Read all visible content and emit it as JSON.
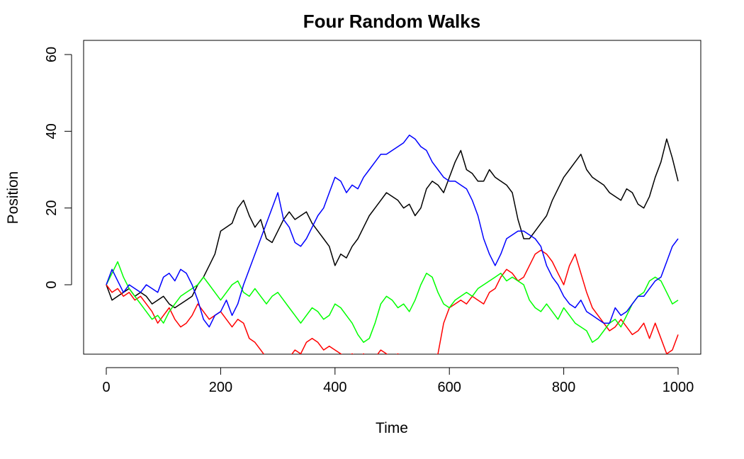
{
  "chart_data": {
    "type": "line",
    "title": "Four Random Walks",
    "xlabel": "Time",
    "ylabel": "Position",
    "xlim": [
      0,
      1000
    ],
    "ylim": [
      -18,
      62
    ],
    "xticks": [
      0,
      200,
      400,
      600,
      800,
      1000
    ],
    "yticks": [
      0,
      20,
      40,
      60
    ],
    "grid": false,
    "legend": "none",
    "series": [
      {
        "color": "#000000",
        "x": [
          0,
          10,
          20,
          30,
          40,
          50,
          60,
          70,
          80,
          90,
          100,
          110,
          120,
          130,
          140,
          150,
          160,
          170,
          180,
          190,
          200,
          210,
          220,
          230,
          240,
          250,
          260,
          270,
          280,
          290,
          300,
          310,
          320,
          330,
          340,
          350,
          360,
          370,
          380,
          390,
          400,
          410,
          420,
          430,
          440,
          450,
          460,
          470,
          480,
          490,
          500,
          510,
          520,
          530,
          540,
          550,
          560,
          570,
          580,
          590,
          600,
          610,
          620,
          630,
          640,
          650,
          660,
          670,
          680,
          690,
          700,
          710,
          720,
          730,
          740,
          750,
          760,
          770,
          780,
          790,
          800,
          810,
          820,
          830,
          840,
          850,
          860,
          870,
          880,
          890,
          900,
          910,
          920,
          930,
          940,
          950,
          960,
          970,
          980,
          990,
          1000
        ],
        "y": [
          0,
          -4,
          -3,
          -2,
          -1,
          -3,
          -2,
          -3,
          -5,
          -4,
          -3,
          -5,
          -6,
          -5,
          -4,
          -3,
          0,
          2,
          5,
          8,
          14,
          15,
          16,
          20,
          22,
          18,
          15,
          17,
          12,
          11,
          14,
          17,
          19,
          17,
          18,
          19,
          16,
          14,
          12,
          10,
          5,
          8,
          7,
          10,
          12,
          15,
          18,
          20,
          22,
          24,
          23,
          22,
          20,
          21,
          18,
          20,
          25,
          27,
          26,
          24,
          28,
          32,
          35,
          30,
          29,
          27,
          27,
          30,
          28,
          27,
          26,
          24,
          17,
          12,
          12,
          14,
          16,
          18,
          22,
          25,
          28,
          30,
          32,
          34,
          30,
          28,
          27,
          26,
          24,
          23,
          22,
          25,
          24,
          21,
          20,
          23,
          28,
          32,
          38,
          33,
          27
        ]
      },
      {
        "color": "#ff0000",
        "x": [
          0,
          10,
          20,
          30,
          40,
          50,
          60,
          70,
          80,
          90,
          100,
          110,
          120,
          130,
          140,
          150,
          160,
          170,
          180,
          190,
          200,
          210,
          220,
          230,
          240,
          250,
          260,
          270,
          280,
          290,
          300,
          310,
          320,
          330,
          340,
          350,
          360,
          370,
          380,
          390,
          400,
          410,
          420,
          430,
          440,
          450,
          460,
          470,
          480,
          490,
          500,
          510,
          520,
          530,
          540,
          550,
          560,
          570,
          580,
          590,
          600,
          610,
          620,
          630,
          640,
          650,
          660,
          670,
          680,
          690,
          700,
          710,
          720,
          730,
          740,
          750,
          760,
          770,
          780,
          790,
          800,
          810,
          820,
          830,
          840,
          850,
          860,
          870,
          880,
          890,
          900,
          910,
          920,
          930,
          940,
          950,
          960,
          970,
          980,
          990,
          1000
        ],
        "y": [
          0,
          -2,
          -1,
          -3,
          -2,
          -4,
          -3,
          -5,
          -7,
          -10,
          -8,
          -6,
          -9,
          -11,
          -10,
          -8,
          -5,
          -7,
          -9,
          -8,
          -7,
          -9,
          -11,
          -9,
          -10,
          -14,
          -15,
          -17,
          -19,
          -21,
          -20,
          -21,
          -19,
          -17,
          -18,
          -15,
          -14,
          -15,
          -17,
          -16,
          -17,
          -18,
          -19,
          -18,
          -19,
          -18,
          -20,
          -19,
          -17,
          -18,
          -19,
          -18,
          -20,
          -21,
          -22,
          -21,
          -20,
          -19,
          -18,
          -10,
          -6,
          -5,
          -4,
          -5,
          -3,
          -4,
          -5,
          -2,
          -1,
          2,
          4,
          3,
          1,
          2,
          5,
          8,
          9,
          8,
          6,
          3,
          0,
          5,
          8,
          3,
          -2,
          -6,
          -8,
          -10,
          -12,
          -11,
          -9,
          -11,
          -13,
          -12,
          -10,
          -14,
          -10,
          -14,
          -18,
          -17,
          -13
        ]
      },
      {
        "color": "#00ff00",
        "x": [
          0,
          10,
          20,
          30,
          40,
          50,
          60,
          70,
          80,
          90,
          100,
          110,
          120,
          130,
          140,
          150,
          160,
          170,
          180,
          190,
          200,
          210,
          220,
          230,
          240,
          250,
          260,
          270,
          280,
          290,
          300,
          310,
          320,
          330,
          340,
          350,
          360,
          370,
          380,
          390,
          400,
          410,
          420,
          430,
          440,
          450,
          460,
          470,
          480,
          490,
          500,
          510,
          520,
          530,
          540,
          550,
          560,
          570,
          580,
          590,
          600,
          610,
          620,
          630,
          640,
          650,
          660,
          670,
          680,
          690,
          700,
          710,
          720,
          730,
          740,
          750,
          760,
          770,
          780,
          790,
          800,
          810,
          820,
          830,
          840,
          850,
          860,
          870,
          880,
          890,
          900,
          910,
          920,
          930,
          940,
          950,
          960,
          970,
          980,
          990,
          1000
        ],
        "y": [
          0,
          3,
          6,
          2,
          -1,
          -3,
          -5,
          -7,
          -9,
          -8,
          -10,
          -7,
          -5,
          -3,
          -2,
          -1,
          0,
          2,
          0,
          -2,
          -4,
          -2,
          0,
          1,
          -2,
          -3,
          -1,
          -3,
          -5,
          -3,
          -2,
          -4,
          -6,
          -8,
          -10,
          -8,
          -6,
          -7,
          -9,
          -8,
          -5,
          -6,
          -8,
          -10,
          -13,
          -15,
          -14,
          -10,
          -5,
          -3,
          -4,
          -6,
          -5,
          -7,
          -4,
          0,
          3,
          2,
          -2,
          -5,
          -6,
          -4,
          -3,
          -2,
          -3,
          -1,
          0,
          1,
          2,
          3,
          1,
          2,
          1,
          0,
          -4,
          -6,
          -7,
          -5,
          -7,
          -9,
          -6,
          -8,
          -10,
          -11,
          -12,
          -15,
          -14,
          -12,
          -10,
          -9,
          -11,
          -8,
          -5,
          -3,
          -2,
          1,
          2,
          1,
          -2,
          -5,
          -4
        ]
      },
      {
        "color": "#0000ff",
        "x": [
          0,
          10,
          20,
          30,
          40,
          50,
          60,
          70,
          80,
          90,
          100,
          110,
          120,
          130,
          140,
          150,
          160,
          170,
          180,
          190,
          200,
          210,
          220,
          230,
          240,
          250,
          260,
          270,
          280,
          290,
          300,
          310,
          320,
          330,
          340,
          350,
          360,
          370,
          380,
          390,
          400,
          410,
          420,
          430,
          440,
          450,
          460,
          470,
          480,
          490,
          500,
          510,
          520,
          530,
          540,
          550,
          560,
          570,
          580,
          590,
          600,
          610,
          620,
          630,
          640,
          650,
          660,
          670,
          680,
          690,
          700,
          710,
          720,
          730,
          740,
          750,
          760,
          770,
          780,
          790,
          800,
          810,
          820,
          830,
          840,
          850,
          860,
          870,
          880,
          890,
          900,
          910,
          920,
          930,
          940,
          950,
          960,
          970,
          980,
          990,
          1000
        ],
        "y": [
          0,
          4,
          1,
          -2,
          0,
          -1,
          -2,
          0,
          -1,
          -2,
          2,
          3,
          1,
          4,
          3,
          0,
          -4,
          -9,
          -11,
          -8,
          -7,
          -4,
          -8,
          -5,
          0,
          4,
          8,
          12,
          16,
          20,
          24,
          17,
          15,
          11,
          10,
          12,
          15,
          18,
          20,
          24,
          28,
          27,
          24,
          26,
          25,
          28,
          30,
          32,
          34,
          34,
          35,
          36,
          37,
          39,
          38,
          36,
          35,
          32,
          30,
          28,
          27,
          27,
          26,
          25,
          22,
          18,
          12,
          8,
          5,
          8,
          12,
          13,
          14,
          14,
          13,
          12,
          10,
          5,
          2,
          0,
          -3,
          -5,
          -6,
          -4,
          -7,
          -8,
          -9,
          -10,
          -10,
          -6,
          -8,
          -7,
          -5,
          -3,
          -3,
          -1,
          1,
          2,
          6,
          10,
          12
        ]
      }
    ]
  }
}
